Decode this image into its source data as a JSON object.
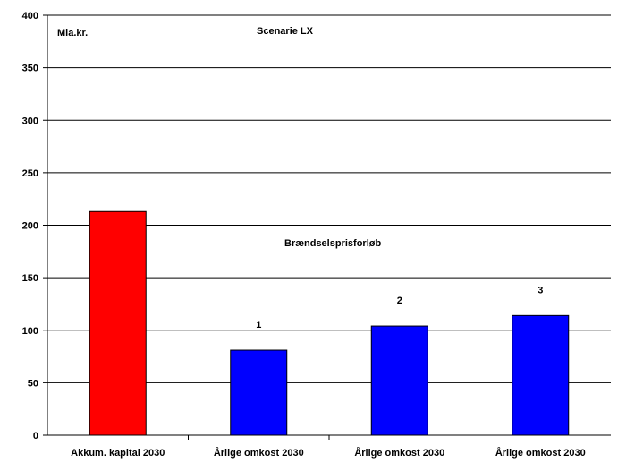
{
  "chart_data": {
    "type": "bar",
    "title": "Scenarie LX",
    "ylabel": "Mia.kr.",
    "xlabel": "",
    "ylim": [
      0,
      400
    ],
    "yticks": [
      0,
      50,
      100,
      150,
      200,
      250,
      300,
      350,
      400
    ],
    "grid": true,
    "categories": [
      "Akkum. kapital 2030",
      "Årlige omkost 2030",
      "Årlige omkost 2030",
      "Årlige omkost 2030"
    ],
    "values": [
      213,
      81,
      104,
      114
    ],
    "bar_colors": [
      "#ff0000",
      "#0000ff",
      "#0000ff",
      "#0000ff"
    ],
    "bar_labels": [
      "",
      "1",
      "2",
      "3"
    ],
    "group_annotation": "Brændselsprisforløb"
  }
}
